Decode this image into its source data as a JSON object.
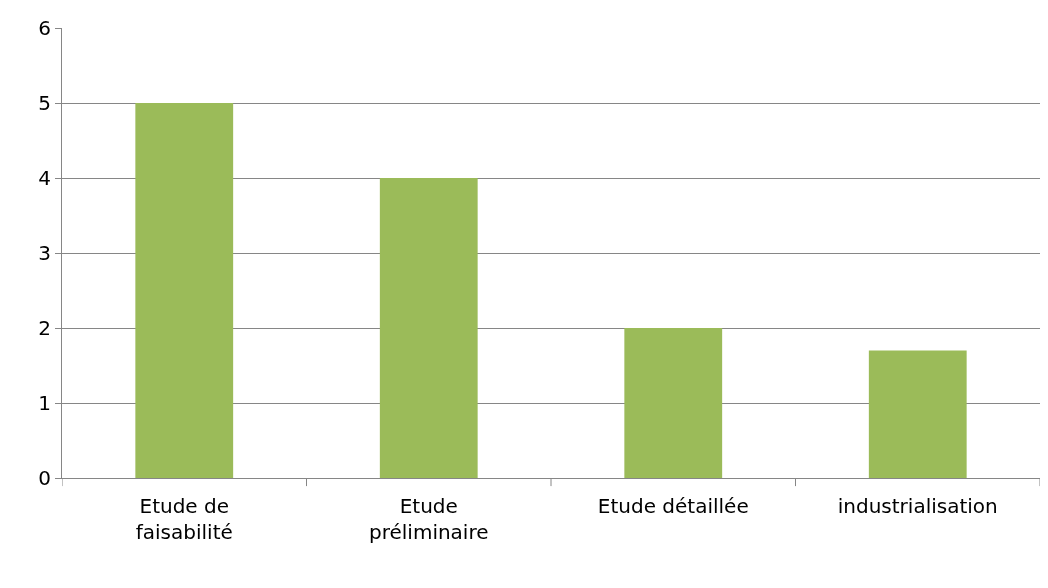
{
  "chart_data": {
    "type": "bar",
    "categories": [
      "Etude de faisabilité",
      "Etude préliminaire",
      "Etude détaillée",
      "industrialisation"
    ],
    "values": [
      5,
      4,
      2,
      1.7
    ],
    "color": "#9bbb59",
    "ylim": [
      0,
      6
    ],
    "yticks": [
      0,
      1,
      2,
      3,
      4,
      5,
      6
    ],
    "grid": "y"
  }
}
